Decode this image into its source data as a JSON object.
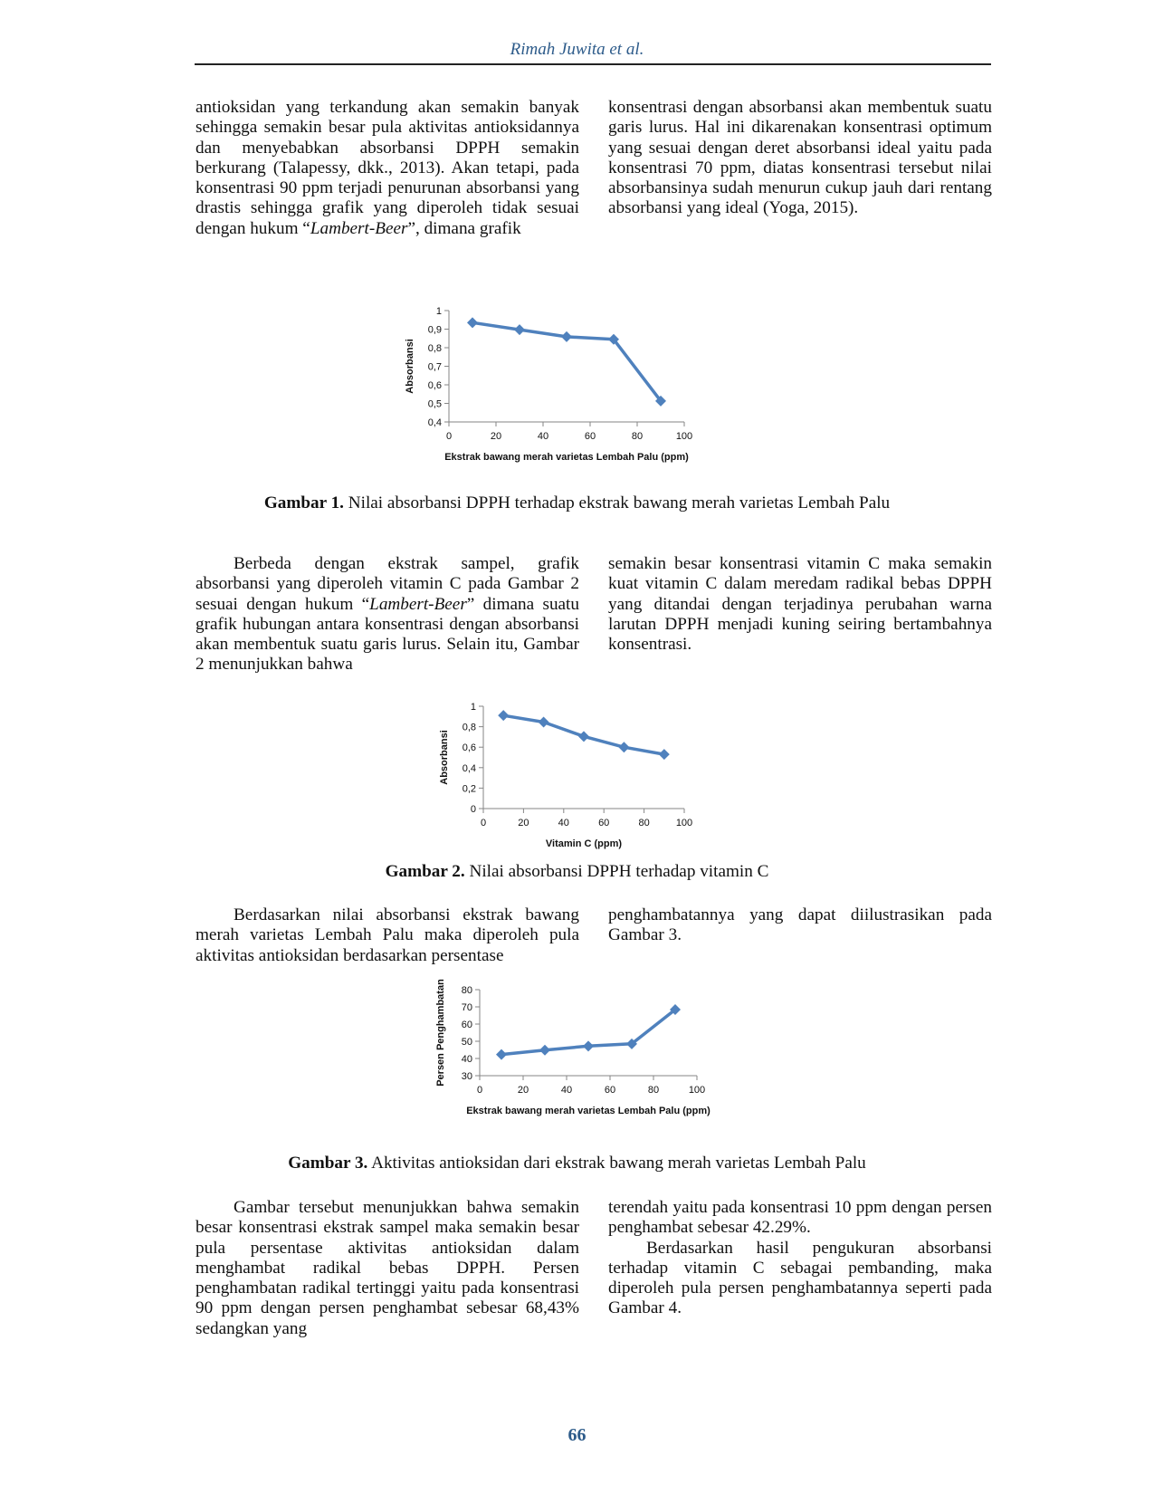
{
  "header": {
    "running_title": "Rimah Juwita et al."
  },
  "paragraphs": {
    "p1_left": "antioksidan yang terkandung akan semakin banyak sehingga semakin besar pula aktivitas antioksidannya dan menyebabkan absorbansi DPPH semakin berkurang (Talapessy, dkk., 2013). Akan tetapi, pada konsentrasi 90 ppm terjadi penurunan absorbansi yang drastis sehingga grafik yang diperoleh tidak sesuai dengan hukum “",
    "p1_left_italic": "Lambert-Beer",
    "p1_left_end": "”, dimana grafik",
    "p1_right": "konsentrasi dengan absorbansi akan membentuk suatu garis lurus. Hal ini dikarenakan konsentrasi optimum yang sesuai dengan deret absorbansi ideal yaitu pada konsentrasi 70 ppm, diatas konsentrasi tersebut nilai absorbansinya sudah menurun cukup jauh dari rentang absorbansi yang ideal (Yoga, 2015).",
    "p2_left_a": "Berbeda dengan ekstrak sampel, grafik absorbansi yang diperoleh vitamin C pada Gambar 2 sesuai dengan hukum “",
    "p2_left_italic": "Lambert-Beer",
    "p2_left_b": "” dimana suatu grafik hubungan antara konsentrasi dengan absorbansi akan membentuk suatu garis lurus. Selain itu, Gambar 2 menunjukkan bahwa",
    "p2_right": "semakin besar konsentrasi vitamin C maka semakin kuat vitamin C dalam meredam radikal bebas DPPH yang ditandai dengan terjadinya perubahan warna larutan DPPH menjadi kuning seiring bertambahnya konsentrasi.",
    "p3_left": "Berdasarkan nilai absorbansi ekstrak bawang merah varietas Lembah Palu maka diperoleh pula aktivitas antioksidan berdasarkan persentase",
    "p3_right": "penghambatannya yang dapat diilustrasikan pada Gambar 3.",
    "p4_left": "Gambar tersebut menunjukkan bahwa semakin besar konsentrasi ekstrak sampel maka semakin besar pula persentase aktivitas antioksidan dalam menghambat radikal bebas DPPH. Persen penghambatan radikal tertinggi yaitu pada konsentrasi 90 ppm dengan persen penghambat sebesar 68,43% sedangkan yang",
    "p4_right": "terendah yaitu pada konsentrasi 10 ppm dengan persen penghambat sebesar 42.29%.",
    "p5_right": "Berdasarkan hasil pengukuran absorbansi terhadap vitamin C sebagai pembanding, maka diperoleh pula persen penghambatannya seperti pada Gambar 4."
  },
  "captions": {
    "fig1_label": "Gambar 1.",
    "fig1_text": " Nilai absorbansi DPPH terhadap ekstrak bawang merah varietas Lembah Palu",
    "fig2_label": "Gambar 2.",
    "fig2_text": " Nilai absorbansi DPPH terhadap vitamin C",
    "fig3_label": "Gambar 3.",
    "fig3_text": " Aktivitas antioksidan dari ekstrak bawang merah varietas Lembah Palu"
  },
  "page_number": "66",
  "chart_data": [
    {
      "type": "line",
      "title": "",
      "xlabel": "Ekstrak bawang merah varietas Lembah Palu (ppm)",
      "ylabel": "Absorbansi",
      "xlim": [
        0,
        100
      ],
      "ylim": [
        0.4,
        1
      ],
      "x_ticks": [
        0,
        20,
        40,
        60,
        80,
        100
      ],
      "x_tick_labels": [
        "0",
        "20",
        "40",
        "60",
        "80",
        "100"
      ],
      "y_ticks": [
        0.4,
        0.5,
        0.6,
        0.7,
        0.8,
        0.9,
        1
      ],
      "y_tick_labels": [
        "0,4",
        "0,5",
        "0,6",
        "0,7",
        "0,8",
        "0,9",
        "1"
      ],
      "grid": false,
      "color": "#4f81bd",
      "series": [
        {
          "x": [
            10,
            30,
            50,
            70,
            90
          ],
          "y": [
            0.935,
            0.897,
            0.859,
            0.845,
            0.513
          ]
        }
      ]
    },
    {
      "type": "line",
      "title": "",
      "xlabel": "Vitamin C (ppm)",
      "ylabel": "Absorbansi",
      "xlim": [
        0,
        100
      ],
      "ylim": [
        0,
        1
      ],
      "x_ticks": [
        0,
        20,
        40,
        60,
        80,
        100
      ],
      "x_tick_labels": [
        "0",
        "20",
        "40",
        "60",
        "80",
        "100"
      ],
      "y_ticks": [
        0,
        0.2,
        0.4,
        0.6,
        0.8,
        1
      ],
      "y_tick_labels": [
        "0",
        "0,2",
        "0,4",
        "0,6",
        "0,8",
        "1"
      ],
      "grid": false,
      "color": "#4f81bd",
      "series": [
        {
          "x": [
            10,
            30,
            50,
            70,
            90
          ],
          "y": [
            0.91,
            0.845,
            0.705,
            0.6,
            0.53
          ]
        }
      ]
    },
    {
      "type": "line",
      "title": "",
      "xlabel": "Ekstrak bawang merah varietas Lembah Palu (ppm)",
      "ylabel": "Persen Penghambatan",
      "xlim": [
        0,
        100
      ],
      "ylim": [
        30,
        80
      ],
      "x_ticks": [
        0,
        20,
        40,
        60,
        80,
        100
      ],
      "x_tick_labels": [
        "0",
        "20",
        "40",
        "60",
        "80",
        "100"
      ],
      "y_ticks": [
        30,
        40,
        50,
        60,
        70,
        80
      ],
      "y_tick_labels": [
        "30",
        "40",
        "50",
        "60",
        "70",
        "80"
      ],
      "grid": false,
      "color": "#4f81bd",
      "series": [
        {
          "x": [
            10,
            30,
            50,
            70,
            90
          ],
          "y": [
            42.29,
            44.9,
            47.2,
            48.5,
            68.43
          ]
        }
      ]
    }
  ]
}
